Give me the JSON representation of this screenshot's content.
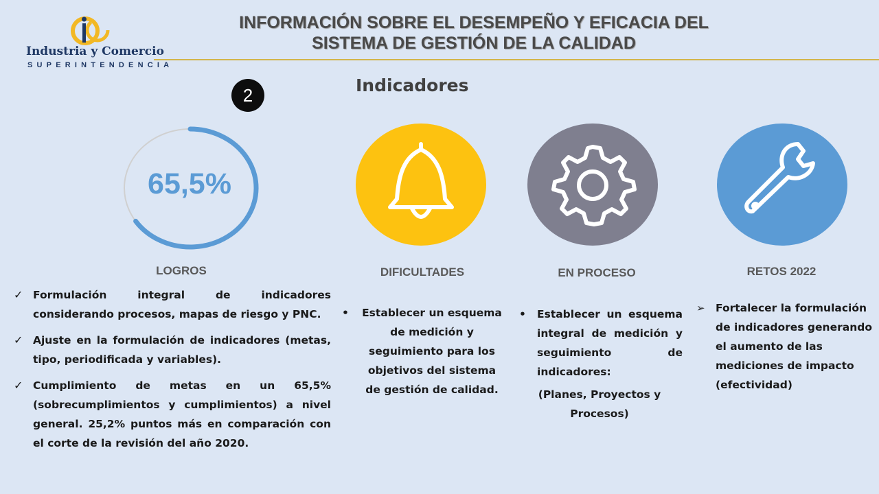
{
  "header": {
    "title_line1": "INFORMACIÓN SOBRE EL DESEMPEÑO Y EFICACIA DEL",
    "title_line2": "SISTEMA DE GESTIÓN DE LA  CALIDAD",
    "logo_name": "Industria y Comercio",
    "logo_sub": "SUPERINTENDENCIA"
  },
  "section": {
    "number": "2",
    "subtitle": "Indicadores"
  },
  "gauge": {
    "label": "65,5%",
    "fraction": 0.655,
    "color": "#5b9bd5",
    "track_color": "#d0d0d0"
  },
  "icons": {
    "logros": "progress-ring-icon",
    "dificultades": "bell-icon",
    "en_proceso": "gear-icon",
    "retos": "wrench-icon"
  },
  "colors": {
    "bell": "#fdc210",
    "gear": "#7f7f8f",
    "wrench": "#5b9bd5",
    "gold_line": "#d3b54a"
  },
  "columns": {
    "logros": {
      "heading": "LOGROS",
      "items": [
        "Formulación integral de indicadores considerando procesos, mapas de riesgo y PNC.",
        "Ajuste en la formulación de indicadores (metas, tipo, periodificada y variables).",
        "Cumplimiento de metas en un 65,5% (sobrecumplimientos y cumplimientos) a nivel general. 25,2% puntos más en comparación con el corte de la revisión del año 2020."
      ]
    },
    "dificultades": {
      "heading": "DIFICULTADES",
      "items": [
        "Establecer un esquema de medición y seguimiento para los objetivos del sistema de gestión de calidad."
      ]
    },
    "en_proceso": {
      "heading": "EN PROCESO",
      "items": [
        "Establecer un esquema integral de medición y seguimiento de indicadores:"
      ],
      "note": "(Planes, Proyectos y Procesos)"
    },
    "retos": {
      "heading": "RETOS 2022",
      "items": [
        "Fortalecer la formulación de indicadores generando el aumento de las mediciones de impacto (efectividad)"
      ]
    }
  }
}
